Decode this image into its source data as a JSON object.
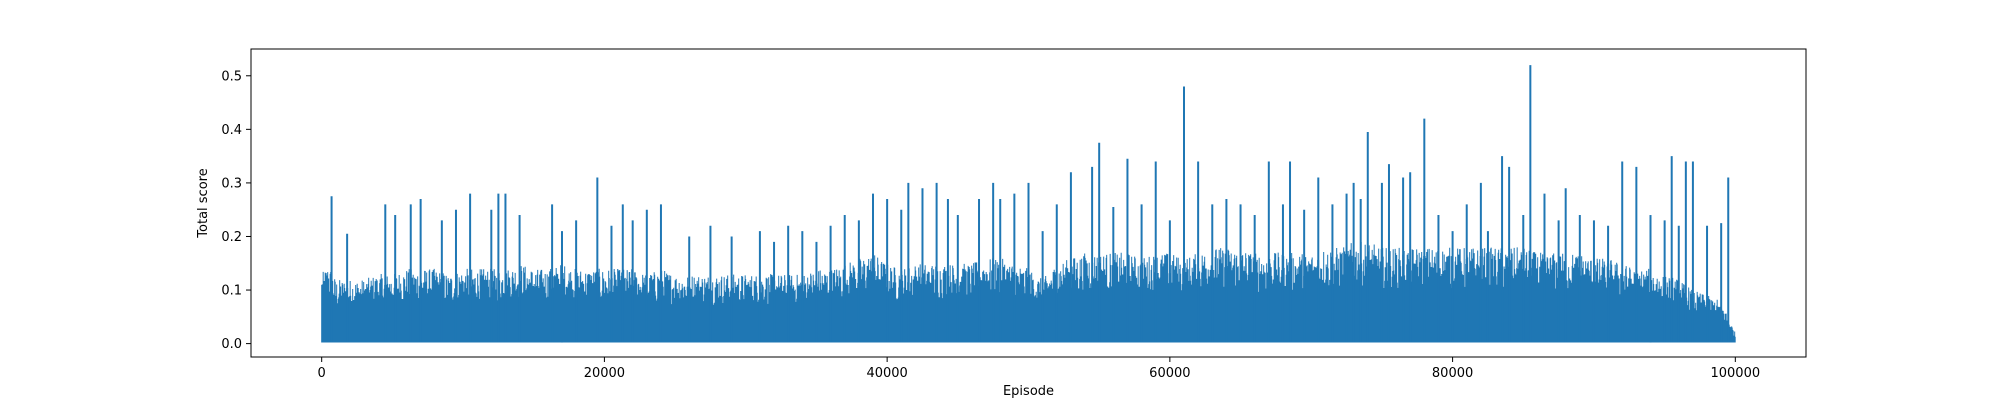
{
  "chart_data": {
    "type": "line",
    "title": "",
    "xlabel": "Episode",
    "ylabel": "Total score",
    "xlim": [
      -5000,
      105000
    ],
    "ylim": [
      -0.025,
      0.55
    ],
    "xticks": [
      0,
      20000,
      40000,
      60000,
      80000,
      100000
    ],
    "xtick_labels": [
      "0",
      "20000",
      "40000",
      "60000",
      "80000",
      "100000"
    ],
    "yticks": [
      0.0,
      0.1,
      0.2,
      0.3,
      0.4,
      0.5
    ],
    "ytick_labels": [
      "0.0",
      "0.1",
      "0.2",
      "0.3",
      "0.4",
      "0.5"
    ],
    "grid": false,
    "legend": "none",
    "series": [
      {
        "color": "#1f77b4",
        "envelope_x": [
          0,
          500,
          1000,
          2000,
          3000,
          4000,
          5000,
          6000,
          7000,
          8000,
          9000,
          10000,
          11000,
          12000,
          13000,
          14000,
          15000,
          16000,
          17000,
          18000,
          19000,
          20000,
          21000,
          22000,
          23000,
          24000,
          25000,
          26000,
          27000,
          28000,
          29000,
          30000,
          31000,
          32000,
          33000,
          34000,
          35000,
          36000,
          37000,
          38000,
          39000,
          40000,
          41000,
          42000,
          43000,
          44000,
          45000,
          46000,
          47000,
          48000,
          49000,
          50000,
          51000,
          52000,
          53000,
          54000,
          55000,
          56000,
          57000,
          58000,
          59000,
          60000,
          61000,
          62000,
          63000,
          64000,
          65000,
          66000,
          67000,
          68000,
          69000,
          70000,
          71000,
          72000,
          73000,
          74000,
          75000,
          76000,
          77000,
          78000,
          79000,
          80000,
          81000,
          82000,
          83000,
          84000,
          85000,
          86000,
          87000,
          88000,
          89000,
          90000,
          91000,
          92000,
          93000,
          94000,
          95000,
          96000,
          97000,
          98000,
          99000,
          100000
        ],
        "envelope_typical_max": [
          0.13,
          0.15,
          0.12,
          0.12,
          0.12,
          0.13,
          0.13,
          0.14,
          0.14,
          0.14,
          0.13,
          0.14,
          0.14,
          0.14,
          0.14,
          0.15,
          0.14,
          0.14,
          0.15,
          0.14,
          0.14,
          0.14,
          0.14,
          0.14,
          0.13,
          0.14,
          0.13,
          0.13,
          0.13,
          0.13,
          0.13,
          0.13,
          0.13,
          0.13,
          0.13,
          0.13,
          0.14,
          0.14,
          0.15,
          0.16,
          0.17,
          0.15,
          0.14,
          0.15,
          0.15,
          0.15,
          0.15,
          0.15,
          0.16,
          0.16,
          0.15,
          0.14,
          0.12,
          0.15,
          0.16,
          0.17,
          0.17,
          0.17,
          0.17,
          0.16,
          0.17,
          0.17,
          0.16,
          0.17,
          0.18,
          0.18,
          0.18,
          0.17,
          0.17,
          0.17,
          0.17,
          0.17,
          0.18,
          0.18,
          0.19,
          0.19,
          0.18,
          0.18,
          0.18,
          0.18,
          0.18,
          0.18,
          0.18,
          0.18,
          0.18,
          0.18,
          0.18,
          0.17,
          0.17,
          0.17,
          0.17,
          0.16,
          0.16,
          0.15,
          0.14,
          0.14,
          0.13,
          0.12,
          0.1,
          0.09,
          0.08,
          0.02
        ],
        "peaks_x": [
          700,
          1800,
          4500,
          5200,
          6300,
          7000,
          8500,
          9500,
          10500,
          12000,
          12500,
          13000,
          14000,
          16300,
          17000,
          18000,
          19500,
          20500,
          21300,
          22000,
          23000,
          24000,
          26000,
          27500,
          29000,
          31000,
          32000,
          33000,
          34000,
          35000,
          36000,
          37000,
          38000,
          39000,
          40000,
          41000,
          41500,
          42500,
          43500,
          44300,
          45000,
          46500,
          47500,
          48000,
          49000,
          50000,
          51000,
          52000,
          53000,
          54500,
          55000,
          56000,
          57000,
          58000,
          59000,
          60000,
          61000,
          62000,
          63000,
          64000,
          65000,
          66000,
          67000,
          68000,
          68500,
          69500,
          70500,
          71500,
          72500,
          73000,
          73500,
          74000,
          75000,
          75500,
          76500,
          77000,
          78000,
          79000,
          80000,
          81000,
          82000,
          82500,
          83500,
          84000,
          85000,
          85500,
          86500,
          87500,
          88000,
          89000,
          90000,
          91000,
          92000,
          93000,
          94000,
          95000,
          95500,
          96000,
          96500,
          97000,
          98000,
          99000,
          99500
        ],
        "peaks_y": [
          0.275,
          0.205,
          0.26,
          0.24,
          0.26,
          0.27,
          0.23,
          0.25,
          0.28,
          0.25,
          0.28,
          0.28,
          0.24,
          0.26,
          0.21,
          0.23,
          0.31,
          0.22,
          0.26,
          0.23,
          0.25,
          0.26,
          0.2,
          0.22,
          0.2,
          0.21,
          0.19,
          0.22,
          0.21,
          0.19,
          0.22,
          0.24,
          0.23,
          0.28,
          0.27,
          0.25,
          0.3,
          0.29,
          0.3,
          0.27,
          0.24,
          0.27,
          0.3,
          0.27,
          0.28,
          0.3,
          0.21,
          0.26,
          0.32,
          0.33,
          0.375,
          0.255,
          0.345,
          0.26,
          0.34,
          0.23,
          0.48,
          0.34,
          0.26,
          0.27,
          0.26,
          0.24,
          0.34,
          0.26,
          0.34,
          0.25,
          0.31,
          0.26,
          0.28,
          0.3,
          0.27,
          0.395,
          0.3,
          0.335,
          0.31,
          0.32,
          0.42,
          0.24,
          0.21,
          0.26,
          0.3,
          0.21,
          0.35,
          0.33,
          0.24,
          0.52,
          0.28,
          0.23,
          0.29,
          0.24,
          0.23,
          0.22,
          0.34,
          0.33,
          0.24,
          0.23,
          0.35,
          0.22,
          0.34,
          0.34,
          0.22,
          0.225,
          0.31
        ]
      }
    ]
  }
}
